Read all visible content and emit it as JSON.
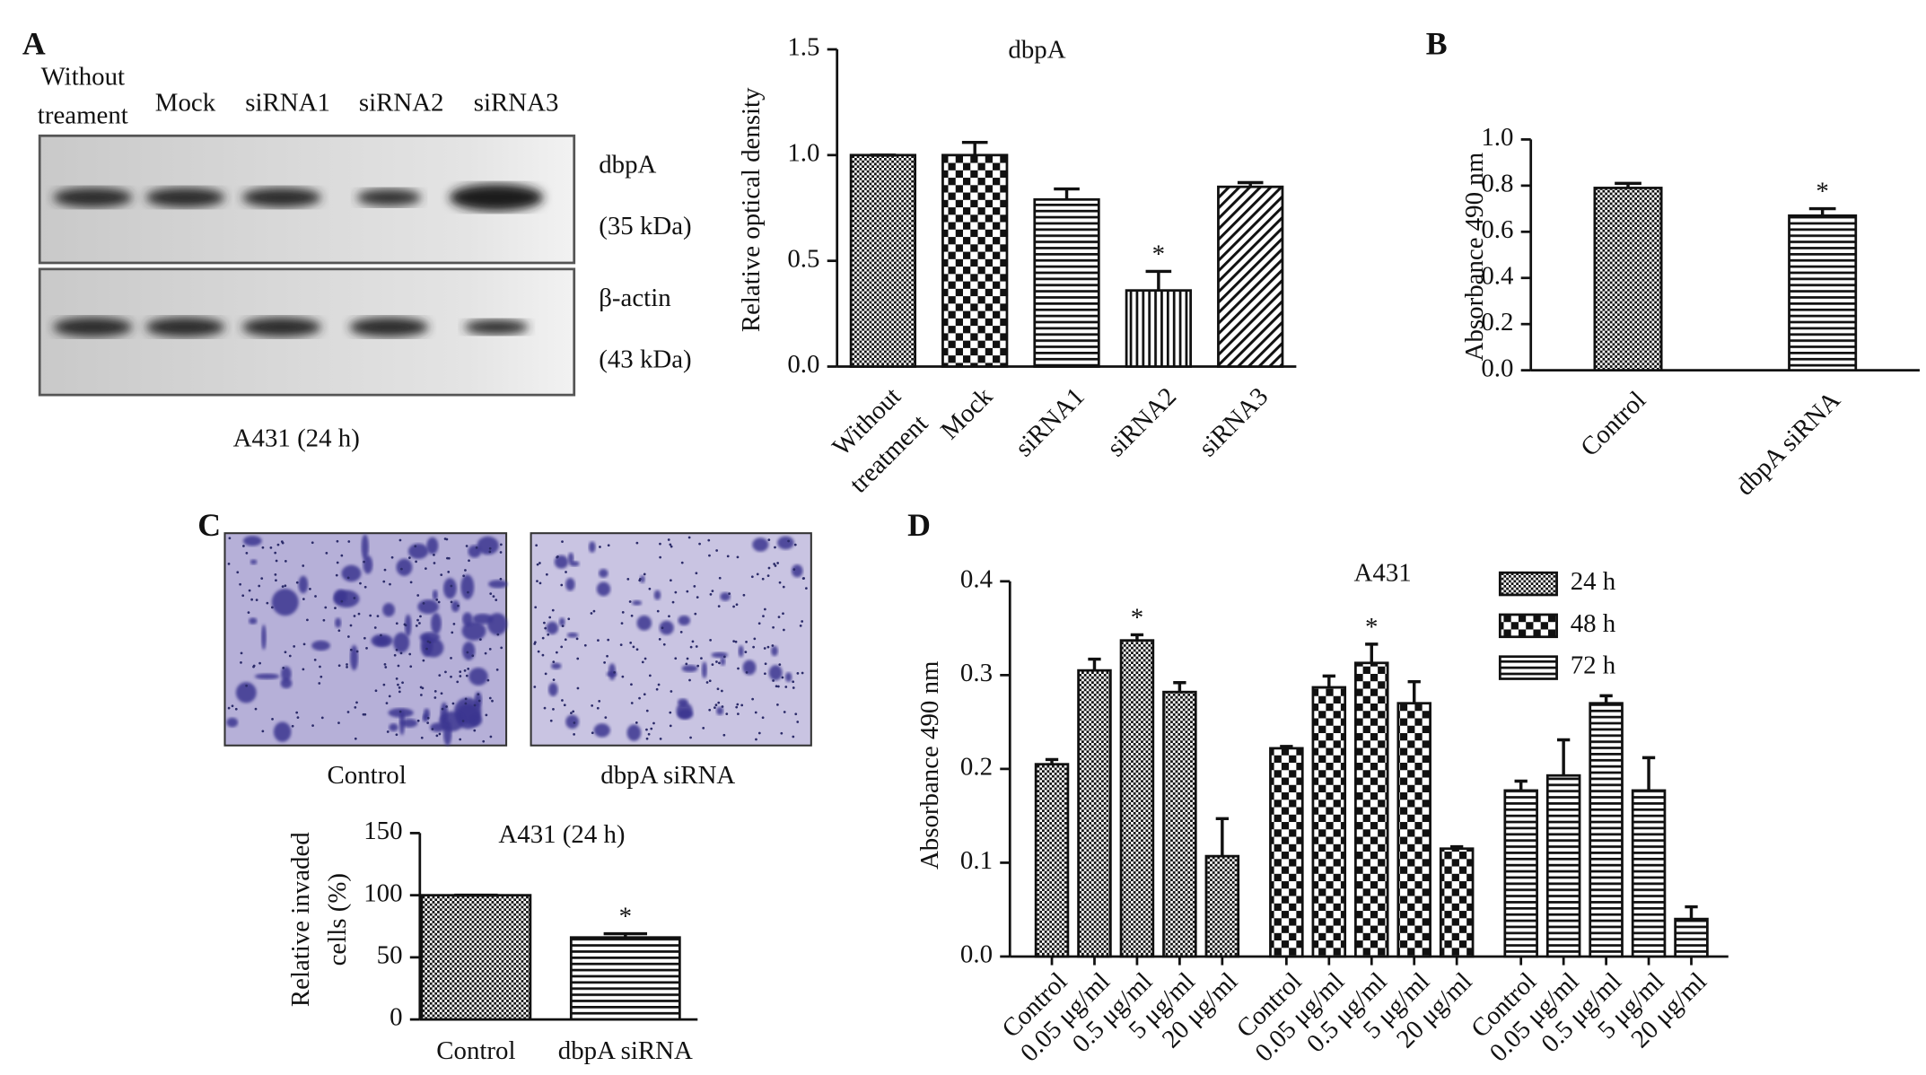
{
  "panel_labels": [
    "A",
    "B",
    "C",
    "D"
  ],
  "blot": {
    "lanes": [
      [
        "Without",
        "treament"
      ],
      [
        "Mock"
      ],
      [
        "siRNA1"
      ],
      [
        "siRNA2"
      ],
      [
        "siRNA3"
      ]
    ],
    "bands": [
      "dbpA",
      "(35 kDa)",
      "β-actin",
      "(43 kDa)"
    ],
    "caption": "A431 (24 h)"
  },
  "micrographs": {
    "labels": [
      "Control",
      "dbpA siRNA"
    ]
  },
  "chart_data": [
    {
      "type": "bar",
      "title": "dbpA",
      "ylabel": [
        "Relative optical density"
      ],
      "categories": [
        [
          "Without",
          "treatment"
        ],
        [
          "Mock"
        ],
        [
          "siRNA1"
        ],
        [
          "siRNA2"
        ],
        [
          "siRNA3"
        ]
      ],
      "values": [
        1.0,
        1.0,
        0.79,
        0.36,
        0.85
      ],
      "errors": [
        0,
        0.06,
        0.05,
        0.09,
        0.02
      ],
      "significance": [
        null,
        null,
        null,
        "*",
        null
      ],
      "patterns": [
        "crosshatch",
        "checker",
        "hlines",
        "vlines",
        "diagonal"
      ],
      "color": "#111111",
      "ylim": [
        0,
        1.5
      ],
      "yticks": [
        {
          "value": 0,
          "label": "0.0"
        },
        0.5,
        {
          "value": 1,
          "label": "1.0"
        },
        1.5
      ]
    },
    {
      "type": "bar",
      "ylabel": [
        "Absorbance 490  nm"
      ],
      "categories": [
        [
          "Control"
        ],
        [
          "dbpA siRNA"
        ]
      ],
      "values": [
        0.79,
        0.67
      ],
      "errors": [
        0.02,
        0.03
      ],
      "significance": [
        null,
        "*"
      ],
      "patterns": [
        "crosshatch",
        "hlines"
      ],
      "color": "#111111",
      "ylim": [
        0,
        1.0
      ],
      "yticks": [
        {
          "value": 0,
          "label": "0.0"
        },
        0.2,
        0.4,
        0.6,
        0.8,
        {
          "value": 1,
          "label": "1.0"
        }
      ]
    },
    {
      "type": "bar",
      "title": "A431 (24 h)",
      "ylabel": [
        "Relative invaded",
        "cells (%)"
      ],
      "categories": [
        [
          "Control"
        ],
        [
          "dbpA siRNA"
        ]
      ],
      "values": [
        100,
        66
      ],
      "errors": [
        0,
        3
      ],
      "significance": [
        null,
        "*"
      ],
      "patterns": [
        "crosshatch",
        "hlines"
      ],
      "color": "#111111",
      "ylim": [
        0,
        150
      ],
      "yticks": [
        0,
        50,
        100,
        150
      ]
    },
    {
      "type": "grouped_bar",
      "title": "A431",
      "ylabel": [
        "Absorbance 490 nm"
      ],
      "categories": [
        "Control",
        "0.05 μg/ml",
        "0.5 μg/ml",
        "5 μg/ml",
        "20 μg/ml"
      ],
      "series": [
        {
          "name": "24 h",
          "pattern": "crosshatch",
          "values": [
            0.205,
            0.305,
            0.337,
            0.282,
            0.107
          ],
          "errors": [
            0.005,
            0.012,
            0.006,
            0.01,
            0.04
          ],
          "significance": [
            null,
            null,
            "*",
            null,
            null
          ]
        },
        {
          "name": "48 h",
          "pattern": "checker",
          "values": [
            0.222,
            0.287,
            0.313,
            0.27,
            0.115
          ],
          "errors": [
            0.002,
            0.012,
            0.02,
            0.023,
            0.002
          ],
          "significance": [
            null,
            null,
            "*",
            null,
            null
          ]
        },
        {
          "name": "72 h",
          "pattern": "hlines",
          "values": [
            0.177,
            0.193,
            0.27,
            0.177,
            0.04
          ],
          "errors": [
            0.01,
            0.038,
            0.008,
            0.035,
            0.013
          ],
          "significance": [
            null,
            null,
            null,
            null,
            null
          ]
        }
      ],
      "color": "#111111",
      "legend": "top-right",
      "ylim": [
        0,
        0.4
      ],
      "yticks": [
        {
          "value": 0,
          "label": "0.0"
        },
        0.1,
        0.2,
        0.3,
        0.4
      ]
    }
  ]
}
